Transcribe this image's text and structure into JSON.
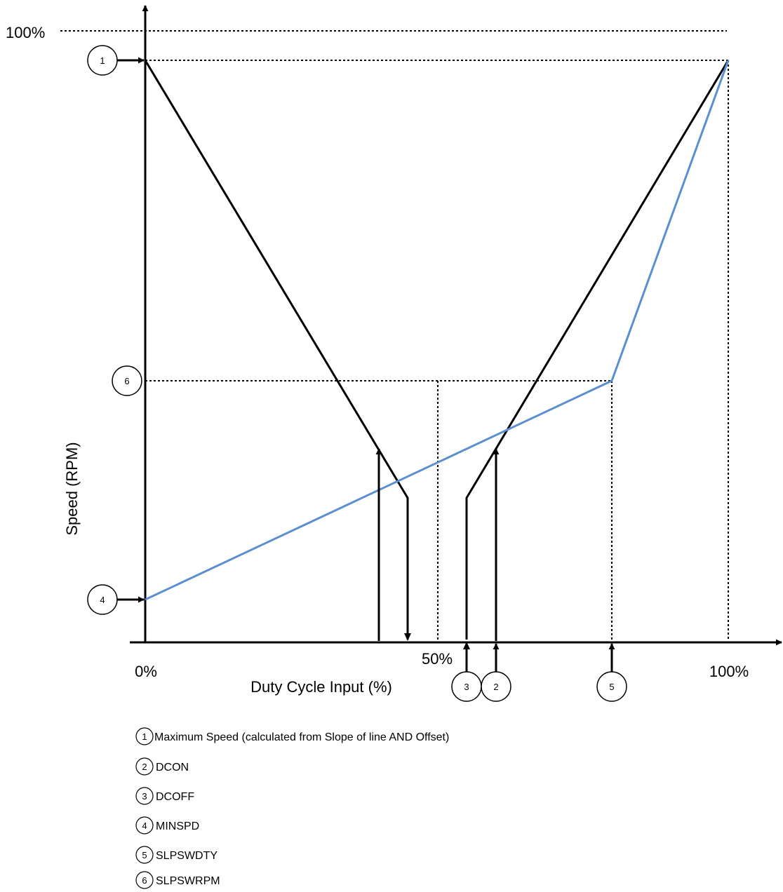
{
  "labels": {
    "y_top": "100%",
    "x_zero": "0%",
    "x_mid": "50%",
    "x_full": "100%",
    "x_axis": "Duty Cycle Input (%)",
    "y_axis": "Speed (RPM)"
  },
  "markers": {
    "m1": "1",
    "m2": "2",
    "m3": "3",
    "m4": "4",
    "m5": "5",
    "m6": "6"
  },
  "legend": [
    {
      "num": "1",
      "text": "Maximum Speed (calculated from Slope of line AND Offset)"
    },
    {
      "num": "2",
      "text": "DCON"
    },
    {
      "num": "3",
      "text": "DCOFF"
    },
    {
      "num": "4",
      "text": "MINSPD"
    },
    {
      "num": "5",
      "text": "SLPSWDTY"
    },
    {
      "num": "6",
      "text": "SLPSWRPM"
    }
  ],
  "colors": {
    "profile_line": "#000000",
    "sleep_profile_line": "#5b8fd0"
  }
}
